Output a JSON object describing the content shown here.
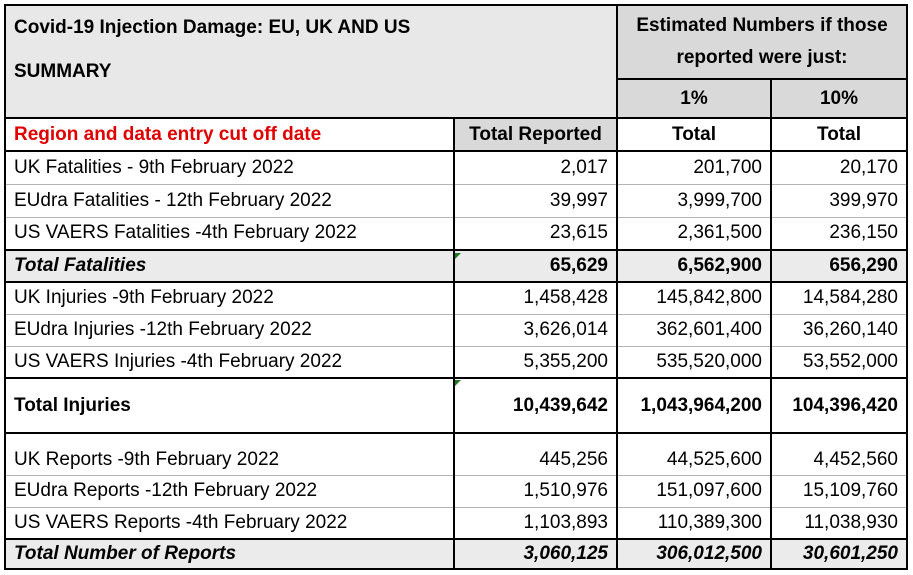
{
  "title_line1": "Covid-19 Injection Damage: EU, UK AND US",
  "title_line2": "SUMMARY",
  "estimated_header_line1": "Estimated Numbers if those",
  "estimated_header_line2": "reported were just:",
  "pct_1": "1%",
  "pct_10": "10%",
  "columns": {
    "region": "Region and data entry cut off date",
    "total_reported": "Total Reported",
    "total_1": "Total",
    "total_10": "Total"
  },
  "fatalities": {
    "rows": [
      {
        "label": "UK Fatalities - 9th February 2022",
        "reported": "2,017",
        "pct1": "201,700",
        "pct10": "20,170"
      },
      {
        "label": "EUdra Fatalities - 12th February 2022",
        "reported": "39,997",
        "pct1": "3,999,700",
        "pct10": "399,970"
      },
      {
        "label": "US VAERS Fatalities -4th February 2022",
        "reported": "23,615",
        "pct1": "2,361,500",
        "pct10": "236,150"
      }
    ],
    "total": {
      "label": "Total Fatalities",
      "reported": "65,629",
      "pct1": "6,562,900",
      "pct10": "656,290"
    }
  },
  "injuries": {
    "rows": [
      {
        "label": "UK Injuries -9th February 2022",
        "reported": "1,458,428",
        "pct1": "145,842,800",
        "pct10": "14,584,280"
      },
      {
        "label": "EUdra Injuries -12th February 2022",
        "reported": "3,626,014",
        "pct1": "362,601,400",
        "pct10": "36,260,140"
      },
      {
        "label": "US VAERS Injuries -4th February 2022",
        "reported": "5,355,200",
        "pct1": "535,520,000",
        "pct10": "53,552,000"
      }
    ],
    "total": {
      "label": "Total Injuries",
      "reported": "10,439,642",
      "pct1": "1,043,964,200",
      "pct10": "104,396,420"
    }
  },
  "reports": {
    "rows": [
      {
        "label": "UK Reports -9th February 2022",
        "reported": "445,256",
        "pct1": "44,525,600",
        "pct10": "4,452,560"
      },
      {
        "label": "EUdra Reports -12th February 2022",
        "reported": "1,510,976",
        "pct1": "151,097,600",
        "pct10": "15,109,760"
      },
      {
        "label": "US VAERS Reports -4th February 2022",
        "reported": "1,103,893",
        "pct1": "110,389,300",
        "pct10": "11,038,930"
      }
    ],
    "total": {
      "label": "Total Number of Reports",
      "reported": "3,060,125",
      "pct1": "306,012,500",
      "pct10": "30,601,250"
    }
  },
  "colors": {
    "header_grey": "#d9d9d9",
    "total_row_grey": "#ebebeb",
    "region_header_red": "#e00000",
    "cell_marker_green": "#1f7a1f"
  }
}
